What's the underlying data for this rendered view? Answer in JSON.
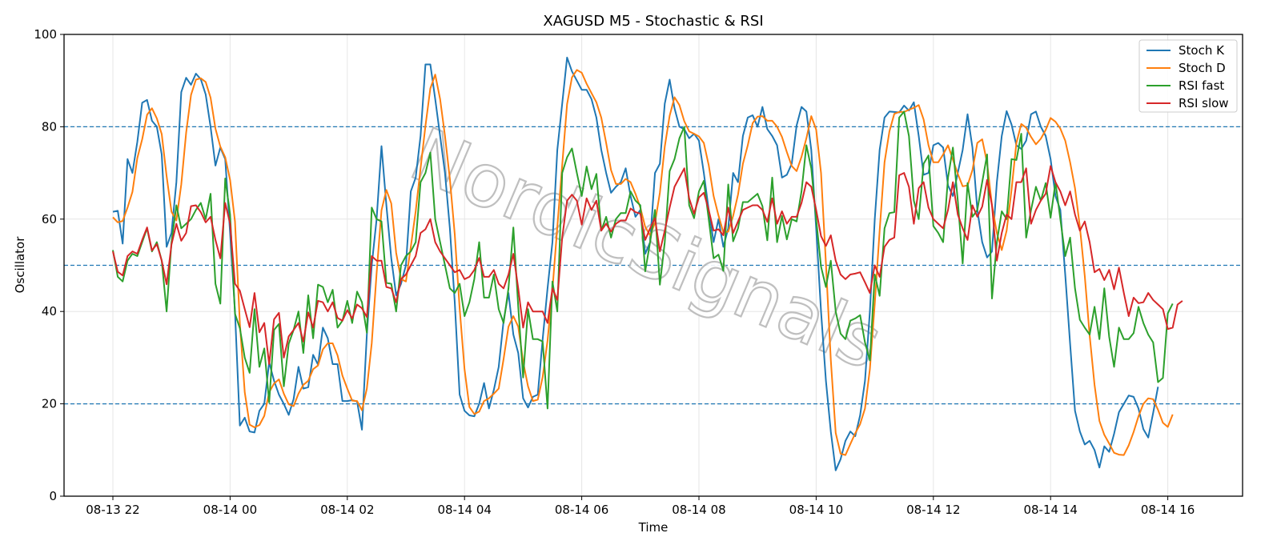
{
  "chart_data": {
    "type": "line",
    "title": "XAGUSD M5 - Stochastic & RSI",
    "xlabel": "Time",
    "ylabel": "Oscillator",
    "ylim": [
      0,
      100
    ],
    "yticks": [
      "0",
      "20",
      "40",
      "60",
      "80",
      "100"
    ],
    "xticks": [
      {
        "label": "08-13 22",
        "index": 0
      },
      {
        "label": "08-14 00",
        "index": 24
      },
      {
        "label": "08-14 02",
        "index": 48
      },
      {
        "label": "08-14 04",
        "index": 72
      },
      {
        "label": "08-14 06",
        "index": 96
      },
      {
        "label": "08-14 08",
        "index": 120
      },
      {
        "label": "08-14 10",
        "index": 144
      },
      {
        "label": "08-14 12",
        "index": 168
      },
      {
        "label": "08-14 14",
        "index": 192
      },
      {
        "label": "08-14 16",
        "index": 216
      }
    ],
    "x_start": "08-13 22:00",
    "x_step_minutes": 5,
    "reference_lines": [
      20,
      50,
      80
    ],
    "grid": true,
    "legend_position": "top-right",
    "watermark": "NordicSignals",
    "colors": {
      "Stoch K": "#1f77b4",
      "Stoch D": "#ff7f0e",
      "RSI fast": "#2ca02c",
      "RSI slow": "#d62728",
      "reference": "#1f77b4"
    },
    "series": [
      {
        "name": "Stoch K",
        "values": [
          61.6,
          61.8,
          54.7,
          73,
          70,
          76.7,
          85.2,
          85.8,
          81.3,
          80,
          74,
          54,
          57,
          68,
          87.5,
          90.6,
          89.1,
          91.5,
          90.3,
          87,
          80,
          71.6,
          75.5,
          73,
          57,
          40,
          15.3,
          17,
          14,
          13.8,
          18.5,
          20,
          29,
          25,
          22,
          20,
          17.6,
          21,
          28,
          23.3,
          23.6,
          30.6,
          28.5,
          36.5,
          34.2,
          28.6,
          28.6,
          20.6,
          20.6,
          20.8,
          20.5,
          14.4,
          35,
          50,
          60,
          75.8,
          63,
          51.5,
          43.5,
          46,
          50,
          66,
          69,
          78,
          93.5,
          93.5,
          86,
          78,
          70,
          58,
          42,
          22,
          18.5,
          17.5,
          17.3,
          20,
          24.5,
          19,
          23,
          28,
          38,
          44,
          35,
          31,
          21.2,
          19.2,
          21.5,
          22,
          34,
          45,
          55,
          75,
          85,
          95,
          92,
          90,
          88,
          88,
          86,
          82,
          75,
          70,
          65.7,
          67,
          68,
          71,
          65,
          60.5,
          62,
          52.5,
          55,
          70,
          72,
          85,
          90.2,
          84,
          80,
          79.5,
          77.5,
          78.5,
          77,
          70,
          62,
          55,
          60,
          54,
          58,
          70,
          68,
          78,
          82,
          82.5,
          80,
          84.3,
          79.5,
          78,
          76,
          69,
          69.6,
          72,
          80.3,
          84.3,
          83.3,
          75,
          58,
          40,
          25,
          14,
          5.6,
          8,
          12,
          14,
          13,
          17.5,
          25,
          40,
          60,
          75,
          82,
          83.3,
          83.2,
          83.1,
          84.6,
          83.5,
          85.3,
          78,
          69.6,
          70,
          76,
          76.5,
          75.5,
          67.3,
          65,
          70,
          75,
          82.7,
          75.5,
          62,
          55,
          51.7,
          53,
          68,
          78,
          83.4,
          80.5,
          76,
          75.2,
          77,
          82.7,
          83.3,
          80,
          78,
          73,
          65,
          62,
          48,
          33,
          18.5,
          14,
          11.2,
          12,
          10,
          6.2,
          10.8,
          9.6,
          13.5,
          18.2,
          20,
          21.8,
          21.5,
          19,
          14.5,
          12.7,
          18,
          23.7
        ]
      },
      {
        "name": "Stoch D",
        "values": [
          60.4,
          59.3,
          59.6,
          62.5,
          65.9,
          73.2,
          77.3,
          82.6,
          84,
          81.8,
          78.4,
          69.3,
          61.6,
          59.7,
          67.5,
          78.7,
          86.9,
          90.2,
          90.5,
          89.7,
          86.3,
          79.6,
          75.7,
          73.4,
          68.5,
          59.5,
          37.4,
          22.5,
          15.5,
          14.9,
          15.4,
          17.4,
          22.5,
          24.4,
          25.3,
          22.2,
          19.9,
          19.5,
          22.2,
          24.1,
          25,
          27.5,
          28.3,
          31.8,
          33.1,
          33.1,
          30.5,
          26.1,
          23.3,
          20.7,
          20.6,
          18.6,
          23.3,
          33.1,
          48.3,
          61.9,
          66.3,
          63.4,
          52.7,
          47,
          46.5,
          54,
          61.7,
          71,
          80.2,
          88.3,
          91.3,
          86,
          78,
          68.7,
          56.7,
          40.7,
          27.5,
          19.3,
          17.8,
          18.3,
          20.6,
          21.2,
          22.2,
          23.3,
          29.7,
          36.7,
          39,
          36.7,
          29.1,
          23.8,
          20.6,
          20.9,
          25.8,
          33.7,
          44.7,
          58.3,
          71.7,
          84.9,
          90.7,
          92.3,
          91.7,
          89.3,
          87.3,
          85.3,
          82,
          76.5,
          70.6,
          67.6,
          67.6,
          68.7,
          68,
          65.5,
          62.5,
          58.3,
          56.5,
          59.2,
          65.7,
          75.7,
          82.4,
          86.4,
          84.7,
          81.2,
          79,
          78.5,
          77.9,
          76.5,
          71.7,
          65,
          60.8,
          57.1,
          57.3,
          60.7,
          65.3,
          72,
          76,
          80.8,
          82.2,
          82.3,
          81.3,
          81.3,
          80,
          77.8,
          74.5,
          71.5,
          70.4,
          73.5,
          77.5,
          82.3,
          79.4,
          70,
          50.4,
          29.5,
          13.7,
          9.2,
          8.9,
          11.3,
          13.6,
          15.6,
          19,
          27.5,
          41.7,
          57.5,
          72.3,
          79,
          82.8,
          83.2,
          83.2,
          83.7,
          84.1,
          84.7,
          81.6,
          76,
          72.3,
          72.3,
          74,
          76,
          72.9,
          69.8,
          67.1,
          67.3,
          70.6,
          76.5,
          77.3,
          72.2,
          63,
          57,
          53.3,
          57.5,
          66.3,
          76.5,
          80.6,
          79.8,
          77.8,
          76.2,
          77.4,
          79.3,
          81.9,
          81.1,
          79.6,
          77,
          72.3,
          66.7,
          58.3,
          47.7,
          34.8,
          24.1,
          16.3,
          13.3,
          11.4,
          9.4,
          9,
          8.9,
          11,
          13.9,
          17.3,
          20,
          21.2,
          21,
          18.7,
          15.9,
          15,
          17.7
        ]
      },
      {
        "name": "RSI fast",
        "values": [
          53.3,
          47.5,
          46.5,
          51,
          52.5,
          52,
          55,
          58,
          53,
          55,
          51,
          40,
          55,
          63,
          58,
          59,
          60,
          62,
          63.5,
          60,
          65.5,
          46,
          41.7,
          68.8,
          61,
          39.5,
          36.4,
          30,
          26.7,
          40.5,
          28,
          32,
          20.3,
          36,
          37.3,
          23.8,
          33,
          36,
          40,
          31,
          43.5,
          34.2,
          45.8,
          45.3,
          42,
          44.7,
          36.5,
          38,
          42.3,
          37.5,
          44.3,
          42,
          35.4,
          62.5,
          60,
          59.5,
          46.2,
          46,
          40,
          50,
          52,
          53,
          55,
          68,
          70,
          74.4,
          60,
          55,
          50,
          45,
          44,
          46,
          39,
          42,
          47,
          55,
          43,
          43,
          48,
          40.5,
          37.5,
          45,
          58.2,
          41,
          25.7,
          40.5,
          34,
          34,
          33.5,
          19,
          46.5,
          40,
          70,
          73.4,
          75.3,
          70,
          65,
          71.4,
          66.5,
          69.8,
          57.5,
          60.5,
          56,
          60,
          61.3,
          61.3,
          66,
          64,
          63,
          48.7,
          55,
          62,
          45.8,
          55,
          70.4,
          73,
          77.5,
          80,
          63,
          60.2,
          66,
          68.3,
          60,
          51.5,
          52.3,
          48.8,
          67.5,
          55.2,
          58,
          63.7,
          63.7,
          64.6,
          65.5,
          62.8,
          55.4,
          69,
          55,
          60.7,
          55.6,
          60,
          59.5,
          66,
          76,
          71,
          60,
          49.7,
          45.3,
          51,
          40,
          35.2,
          34,
          38,
          38.5,
          39.2,
          33.3,
          29.4,
          48,
          43.4,
          58,
          61.3,
          61.5,
          82,
          83.3,
          78,
          64,
          60,
          72,
          73.8,
          58.5,
          57,
          55,
          69,
          75.5,
          64,
          50.4,
          67.8,
          60.5,
          62,
          68,
          74,
          42.8,
          55,
          61.7,
          60,
          73,
          72.8,
          78.5,
          56,
          62,
          67,
          64,
          67.8,
          60.3,
          68,
          60,
          52,
          56,
          45,
          38.2,
          36.5,
          35,
          41,
          34,
          45,
          34.5,
          28,
          36.5,
          34,
          34,
          35.3,
          41,
          37.5,
          35,
          33.3,
          24.7,
          25.6,
          39.6,
          41.7
        ]
      },
      {
        "name": "RSI slow",
        "values": [
          53,
          48.6,
          47.8,
          52,
          53,
          52.5,
          55.5,
          58.2,
          53.2,
          54.6,
          51,
          45.9,
          54.5,
          59,
          55.3,
          57,
          62.8,
          63,
          61.5,
          59.3,
          60.5,
          55.5,
          51.5,
          63.5,
          59,
          46,
          44.5,
          40.5,
          36.6,
          44,
          35.5,
          37.5,
          28.6,
          38.3,
          39.7,
          30,
          34.6,
          36,
          37.5,
          33.5,
          39.8,
          36.5,
          42.3,
          42,
          40,
          42,
          38.6,
          38,
          40.3,
          38.5,
          41.5,
          40.7,
          38.8,
          52,
          51,
          51,
          45.3,
          45,
          42,
          47,
          48,
          50,
          52,
          57,
          57.8,
          60,
          55,
          53,
          51.5,
          50,
          48.5,
          49,
          47,
          47.5,
          49,
          51.6,
          47.5,
          47.5,
          49,
          46,
          45,
          48,
          52.5,
          45,
          36.5,
          42,
          40,
          40,
          40,
          37.5,
          45,
          42.5,
          56,
          64,
          65.3,
          64,
          58.8,
          64.5,
          62,
          64,
          57.5,
          59,
          57.3,
          59,
          59.7,
          59.7,
          62.3,
          61.5,
          61.2,
          55.5,
          58,
          60.2,
          53,
          57.5,
          62.5,
          67,
          69,
          71,
          64.5,
          61.2,
          64.7,
          65.7,
          62,
          57.5,
          57.8,
          56.5,
          62.5,
          57,
          59.5,
          62,
          62.5,
          63,
          63,
          62,
          59.4,
          64.5,
          59,
          61.7,
          59,
          60.5,
          60.5,
          63.5,
          68,
          67,
          62,
          56.3,
          54.2,
          56.5,
          51,
          48,
          47,
          48,
          48.2,
          48.5,
          46.3,
          44,
          50,
          47.5,
          54,
          55.5,
          56,
          69.5,
          70,
          67,
          59,
          66.7,
          68,
          62.5,
          60,
          59,
          58,
          62,
          68,
          61,
          58,
          55.5,
          63,
          60.5,
          62.7,
          68.5,
          63,
          51,
          57,
          61,
          60,
          68,
          68,
          71,
          59,
          62,
          64,
          65.5,
          71.5,
          68,
          66,
          63,
          66,
          61,
          57.5,
          59.5,
          55,
          48.5,
          49.2,
          46.8,
          49,
          44.8,
          49.5,
          44,
          39,
          43,
          41.8,
          42,
          44,
          42.5,
          41.5,
          40.5,
          36.2,
          36.5,
          41.5,
          42.3
        ]
      }
    ]
  }
}
